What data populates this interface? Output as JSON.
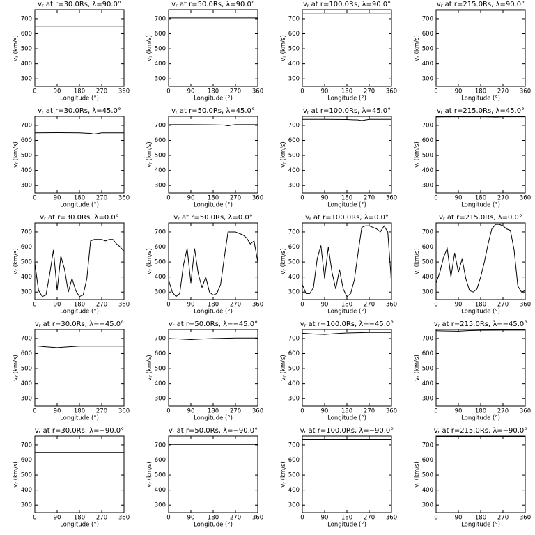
{
  "chart_data": [
    {
      "type": "line",
      "title": {
        "symbol": "v",
        "subscript": "r",
        "rest": " at r=30.0Rs,  λ=90.0°"
      },
      "xlabel": "Longitude (°)",
      "ylabel": {
        "symbol": "v",
        "subscript": "r",
        "rest": " (km/s)"
      },
      "x": [
        0,
        360
      ],
      "values": [
        650,
        650
      ],
      "color": "#000000",
      "xlim": [
        0,
        360
      ],
      "ylim": [
        250,
        760
      ],
      "xticks": [
        0,
        90,
        180,
        270,
        360
      ],
      "yticks": [
        300,
        400,
        500,
        600,
        700
      ]
    },
    {
      "type": "line",
      "title": {
        "symbol": "v",
        "subscript": "r",
        "rest": " at r=50.0Rs,  λ=90.0°"
      },
      "xlabel": "Longitude (°)",
      "ylabel": {
        "symbol": "v",
        "subscript": "r",
        "rest": " (km/s)"
      },
      "x": [
        0,
        360
      ],
      "values": [
        705,
        705
      ],
      "color": "#000000",
      "xlim": [
        0,
        360
      ],
      "ylim": [
        250,
        760
      ],
      "xticks": [
        0,
        90,
        180,
        270,
        360
      ],
      "yticks": [
        300,
        400,
        500,
        600,
        700
      ]
    },
    {
      "type": "line",
      "title": {
        "symbol": "v",
        "subscript": "r",
        "rest": " at r=100.0Rs,  λ=90.0°"
      },
      "xlabel": "Longitude (°)",
      "ylabel": {
        "symbol": "v",
        "subscript": "r",
        "rest": " (km/s)"
      },
      "x": [
        0,
        360
      ],
      "values": [
        738,
        738
      ],
      "color": "#000000",
      "xlim": [
        0,
        360
      ],
      "ylim": [
        250,
        760
      ],
      "xticks": [
        0,
        90,
        180,
        270,
        360
      ],
      "yticks": [
        300,
        400,
        500,
        600,
        700
      ]
    },
    {
      "type": "line",
      "title": {
        "symbol": "v",
        "subscript": "r",
        "rest": " at r=215.0Rs,  λ=90.0°"
      },
      "xlabel": "Longitude (°)",
      "ylabel": {
        "symbol": "v",
        "subscript": "r",
        "rest": " (km/s)"
      },
      "x": [
        0,
        360
      ],
      "values": [
        756,
        756
      ],
      "color": "#000000",
      "xlim": [
        0,
        360
      ],
      "ylim": [
        250,
        760
      ],
      "xticks": [
        0,
        90,
        180,
        270,
        360
      ],
      "yticks": [
        300,
        400,
        500,
        600,
        700
      ]
    },
    {
      "type": "line",
      "title": {
        "symbol": "v",
        "subscript": "r",
        "rest": " at r=30.0Rs,  λ=45.0°"
      },
      "xlabel": "Longitude (°)",
      "ylabel": {
        "symbol": "v",
        "subscript": "r",
        "rest": " (km/s)"
      },
      "x": [
        0,
        90,
        180,
        225,
        240,
        255,
        270,
        360
      ],
      "values": [
        650,
        651,
        650,
        646,
        642,
        646,
        650,
        650
      ],
      "color": "#000000",
      "xlim": [
        0,
        360
      ],
      "ylim": [
        250,
        760
      ],
      "xticks": [
        0,
        90,
        180,
        270,
        360
      ],
      "yticks": [
        300,
        400,
        500,
        600,
        700
      ]
    },
    {
      "type": "line",
      "title": {
        "symbol": "v",
        "subscript": "r",
        "rest": " at r=50.0Rs,  λ=45.0°"
      },
      "xlabel": "Longitude (°)",
      "ylabel": {
        "symbol": "v",
        "subscript": "r",
        "rest": " (km/s)"
      },
      "x": [
        0,
        90,
        180,
        225,
        240,
        255,
        270,
        360
      ],
      "values": [
        705,
        705,
        704,
        702,
        697,
        702,
        705,
        705
      ],
      "color": "#000000",
      "xlim": [
        0,
        360
      ],
      "ylim": [
        250,
        760
      ],
      "xticks": [
        0,
        90,
        180,
        270,
        360
      ],
      "yticks": [
        300,
        400,
        500,
        600,
        700
      ]
    },
    {
      "type": "line",
      "title": {
        "symbol": "v",
        "subscript": "r",
        "rest": " at r=100.0Rs,  λ=45.0°"
      },
      "xlabel": "Longitude (°)",
      "ylabel": {
        "symbol": "v",
        "subscript": "r",
        "rest": " (km/s)"
      },
      "x": [
        0,
        90,
        180,
        225,
        240,
        255,
        270,
        360
      ],
      "values": [
        740,
        740,
        739,
        736,
        732,
        736,
        740,
        740
      ],
      "color": "#000000",
      "xlim": [
        0,
        360
      ],
      "ylim": [
        250,
        760
      ],
      "xticks": [
        0,
        90,
        180,
        270,
        360
      ],
      "yticks": [
        300,
        400,
        500,
        600,
        700
      ]
    },
    {
      "type": "line",
      "title": {
        "symbol": "v",
        "subscript": "r",
        "rest": " at r=215.0Rs,  λ=45.0°"
      },
      "xlabel": "Longitude (°)",
      "ylabel": {
        "symbol": "v",
        "subscript": "r",
        "rest": " (km/s)"
      },
      "x": [
        0,
        90,
        180,
        225,
        240,
        255,
        270,
        360
      ],
      "values": [
        756,
        757,
        757,
        756,
        755,
        756,
        757,
        757
      ],
      "color": "#000000",
      "xlim": [
        0,
        360
      ],
      "ylim": [
        250,
        760
      ],
      "xticks": [
        0,
        90,
        180,
        270,
        360
      ],
      "yticks": [
        300,
        400,
        500,
        600,
        700
      ]
    },
    {
      "type": "line",
      "title": {
        "symbol": "v",
        "subscript": "r",
        "rest": " at r=30.0Rs,  λ=0.0°"
      },
      "xlabel": "Longitude (°)",
      "ylabel": {
        "symbol": "v",
        "subscript": "r",
        "rest": " (km/s)"
      },
      "x": [
        0,
        15,
        30,
        45,
        60,
        75,
        90,
        105,
        120,
        135,
        150,
        165,
        180,
        195,
        210,
        225,
        240,
        255,
        270,
        285,
        300,
        315,
        330,
        345,
        360
      ],
      "values": [
        490,
        310,
        270,
        280,
        420,
        580,
        310,
        540,
        450,
        300,
        390,
        310,
        270,
        280,
        390,
        640,
        650,
        650,
        650,
        640,
        650,
        650,
        620,
        600,
        570
      ],
      "color": "#000000",
      "xlim": [
        0,
        360
      ],
      "ylim": [
        250,
        760
      ],
      "xticks": [
        0,
        90,
        180,
        270,
        360
      ],
      "yticks": [
        300,
        400,
        500,
        600,
        700
      ]
    },
    {
      "type": "line",
      "title": {
        "symbol": "v",
        "subscript": "r",
        "rest": " at r=50.0Rs,  λ=0.0°"
      },
      "xlabel": "Longitude (°)",
      "ylabel": {
        "symbol": "v",
        "subscript": "r",
        "rest": " (km/s)"
      },
      "x": [
        0,
        15,
        30,
        45,
        60,
        75,
        90,
        105,
        120,
        135,
        150,
        165,
        180,
        195,
        210,
        225,
        240,
        255,
        270,
        285,
        300,
        315,
        330,
        345,
        360
      ],
      "values": [
        380,
        300,
        270,
        290,
        480,
        590,
        360,
        590,
        420,
        330,
        400,
        300,
        280,
        290,
        350,
        530,
        700,
        700,
        700,
        690,
        680,
        660,
        620,
        640,
        500
      ],
      "color": "#000000",
      "xlim": [
        0,
        360
      ],
      "ylim": [
        250,
        760
      ],
      "xticks": [
        0,
        90,
        180,
        270,
        360
      ],
      "yticks": [
        300,
        400,
        500,
        600,
        700
      ]
    },
    {
      "type": "line",
      "title": {
        "symbol": "v",
        "subscript": "r",
        "rest": " at r=100.0Rs,  λ=0.0°"
      },
      "xlabel": "Longitude (°)",
      "ylabel": {
        "symbol": "v",
        "subscript": "r",
        "rest": " (km/s)"
      },
      "x": [
        0,
        15,
        30,
        45,
        60,
        75,
        90,
        105,
        120,
        135,
        150,
        165,
        180,
        195,
        210,
        225,
        240,
        255,
        270,
        285,
        300,
        315,
        330,
        345,
        360
      ],
      "values": [
        350,
        290,
        290,
        330,
        520,
        610,
        390,
        600,
        430,
        320,
        450,
        320,
        270,
        290,
        380,
        560,
        730,
        740,
        740,
        730,
        720,
        700,
        740,
        700,
        360
      ],
      "color": "#000000",
      "xlim": [
        0,
        360
      ],
      "ylim": [
        250,
        760
      ],
      "xticks": [
        0,
        90,
        180,
        270,
        360
      ],
      "yticks": [
        300,
        400,
        500,
        600,
        700
      ]
    },
    {
      "type": "line",
      "title": {
        "symbol": "v",
        "subscript": "r",
        "rest": " at r=215.0Rs,  λ=0.0°"
      },
      "xlabel": "Longitude (°)",
      "ylabel": {
        "symbol": "v",
        "subscript": "r",
        "rest": " (km/s)"
      },
      "x": [
        0,
        15,
        30,
        45,
        60,
        75,
        90,
        105,
        120,
        135,
        150,
        165,
        180,
        195,
        210,
        225,
        240,
        255,
        270,
        285,
        300,
        315,
        330,
        345,
        360
      ],
      "values": [
        360,
        430,
        530,
        590,
        400,
        560,
        430,
        520,
        390,
        310,
        300,
        320,
        400,
        500,
        620,
        720,
        750,
        750,
        740,
        720,
        710,
        580,
        340,
        300,
        310
      ],
      "color": "#000000",
      "xlim": [
        0,
        360
      ],
      "ylim": [
        250,
        760
      ],
      "xticks": [
        0,
        90,
        180,
        270,
        360
      ],
      "yticks": [
        300,
        400,
        500,
        600,
        700
      ]
    },
    {
      "type": "line",
      "title": {
        "symbol": "v",
        "subscript": "r",
        "rest": " at r=30.0Rs,  λ=−45.0°"
      },
      "xlabel": "Longitude (°)",
      "ylabel": {
        "symbol": "v",
        "subscript": "r",
        "rest": " (km/s)"
      },
      "x": [
        0,
        45,
        90,
        135,
        180,
        270,
        360
      ],
      "values": [
        652,
        645,
        640,
        645,
        650,
        650,
        650
      ],
      "color": "#000000",
      "xlim": [
        0,
        360
      ],
      "ylim": [
        250,
        760
      ],
      "xticks": [
        0,
        90,
        180,
        270,
        360
      ],
      "yticks": [
        300,
        400,
        500,
        600,
        700
      ]
    },
    {
      "type": "line",
      "title": {
        "symbol": "v",
        "subscript": "r",
        "rest": " at r=50.0Rs,  λ=−45.0°"
      },
      "xlabel": "Longitude (°)",
      "ylabel": {
        "symbol": "v",
        "subscript": "r",
        "rest": " (km/s)"
      },
      "x": [
        0,
        45,
        90,
        135,
        180,
        270,
        360
      ],
      "values": [
        700,
        697,
        693,
        697,
        700,
        703,
        703
      ],
      "color": "#000000",
      "xlim": [
        0,
        360
      ],
      "ylim": [
        250,
        760
      ],
      "xticks": [
        0,
        90,
        180,
        270,
        360
      ],
      "yticks": [
        300,
        400,
        500,
        600,
        700
      ]
    },
    {
      "type": "line",
      "title": {
        "symbol": "v",
        "subscript": "r",
        "rest": " at r=100.0Rs,  λ=−45.0°"
      },
      "xlabel": "Longitude (°)",
      "ylabel": {
        "symbol": "v",
        "subscript": "r",
        "rest": " (km/s)"
      },
      "x": [
        0,
        45,
        90,
        135,
        180,
        270,
        360
      ],
      "values": [
        735,
        730,
        727,
        733,
        737,
        740,
        740
      ],
      "color": "#000000",
      "xlim": [
        0,
        360
      ],
      "ylim": [
        250,
        760
      ],
      "xticks": [
        0,
        90,
        180,
        270,
        360
      ],
      "yticks": [
        300,
        400,
        500,
        600,
        700
      ]
    },
    {
      "type": "line",
      "title": {
        "symbol": "v",
        "subscript": "r",
        "rest": " at r=215.0Rs,  λ=−45.0°"
      },
      "xlabel": "Longitude (°)",
      "ylabel": {
        "symbol": "v",
        "subscript": "r",
        "rest": " (km/s)"
      },
      "x": [
        0,
        45,
        90,
        135,
        180,
        270,
        360
      ],
      "values": [
        752,
        750,
        749,
        753,
        755,
        756,
        756
      ],
      "color": "#000000",
      "xlim": [
        0,
        360
      ],
      "ylim": [
        250,
        760
      ],
      "xticks": [
        0,
        90,
        180,
        270,
        360
      ],
      "yticks": [
        300,
        400,
        500,
        600,
        700
      ]
    },
    {
      "type": "line",
      "title": {
        "symbol": "v",
        "subscript": "r",
        "rest": " at r=30.0Rs,  λ=−90.0°"
      },
      "xlabel": "Longitude (°)",
      "ylabel": {
        "symbol": "v",
        "subscript": "r",
        "rest": " (km/s)"
      },
      "x": [
        0,
        360
      ],
      "values": [
        650,
        650
      ],
      "color": "#000000",
      "xlim": [
        0,
        360
      ],
      "ylim": [
        250,
        760
      ],
      "xticks": [
        0,
        90,
        180,
        270,
        360
      ],
      "yticks": [
        300,
        400,
        500,
        600,
        700
      ]
    },
    {
      "type": "line",
      "title": {
        "symbol": "v",
        "subscript": "r",
        "rest": " at r=50.0Rs,  λ=−90.0°"
      },
      "xlabel": "Longitude (°)",
      "ylabel": {
        "symbol": "v",
        "subscript": "r",
        "rest": " (km/s)"
      },
      "x": [
        0,
        360
      ],
      "values": [
        703,
        703
      ],
      "color": "#000000",
      "xlim": [
        0,
        360
      ],
      "ylim": [
        250,
        760
      ],
      "xticks": [
        0,
        90,
        180,
        270,
        360
      ],
      "yticks": [
        300,
        400,
        500,
        600,
        700
      ]
    },
    {
      "type": "line",
      "title": {
        "symbol": "v",
        "subscript": "r",
        "rest": " at r=100.0Rs,  λ=−90.0°"
      },
      "xlabel": "Longitude (°)",
      "ylabel": {
        "symbol": "v",
        "subscript": "r",
        "rest": " (km/s)"
      },
      "x": [
        0,
        360
      ],
      "values": [
        739,
        739
      ],
      "color": "#000000",
      "xlim": [
        0,
        360
      ],
      "ylim": [
        250,
        760
      ],
      "xticks": [
        0,
        90,
        180,
        270,
        360
      ],
      "yticks": [
        300,
        400,
        500,
        600,
        700
      ]
    },
    {
      "type": "line",
      "title": {
        "symbol": "v",
        "subscript": "r",
        "rest": " at r=215.0Rs,  λ=−90.0°"
      },
      "xlabel": "Longitude (°)",
      "ylabel": {
        "symbol": "v",
        "subscript": "r",
        "rest": " (km/s)"
      },
      "x": [
        0,
        360
      ],
      "values": [
        756,
        756
      ],
      "color": "#000000",
      "xlim": [
        0,
        360
      ],
      "ylim": [
        250,
        760
      ],
      "xticks": [
        0,
        90,
        180,
        270,
        360
      ],
      "yticks": [
        300,
        400,
        500,
        600,
        700
      ]
    }
  ]
}
